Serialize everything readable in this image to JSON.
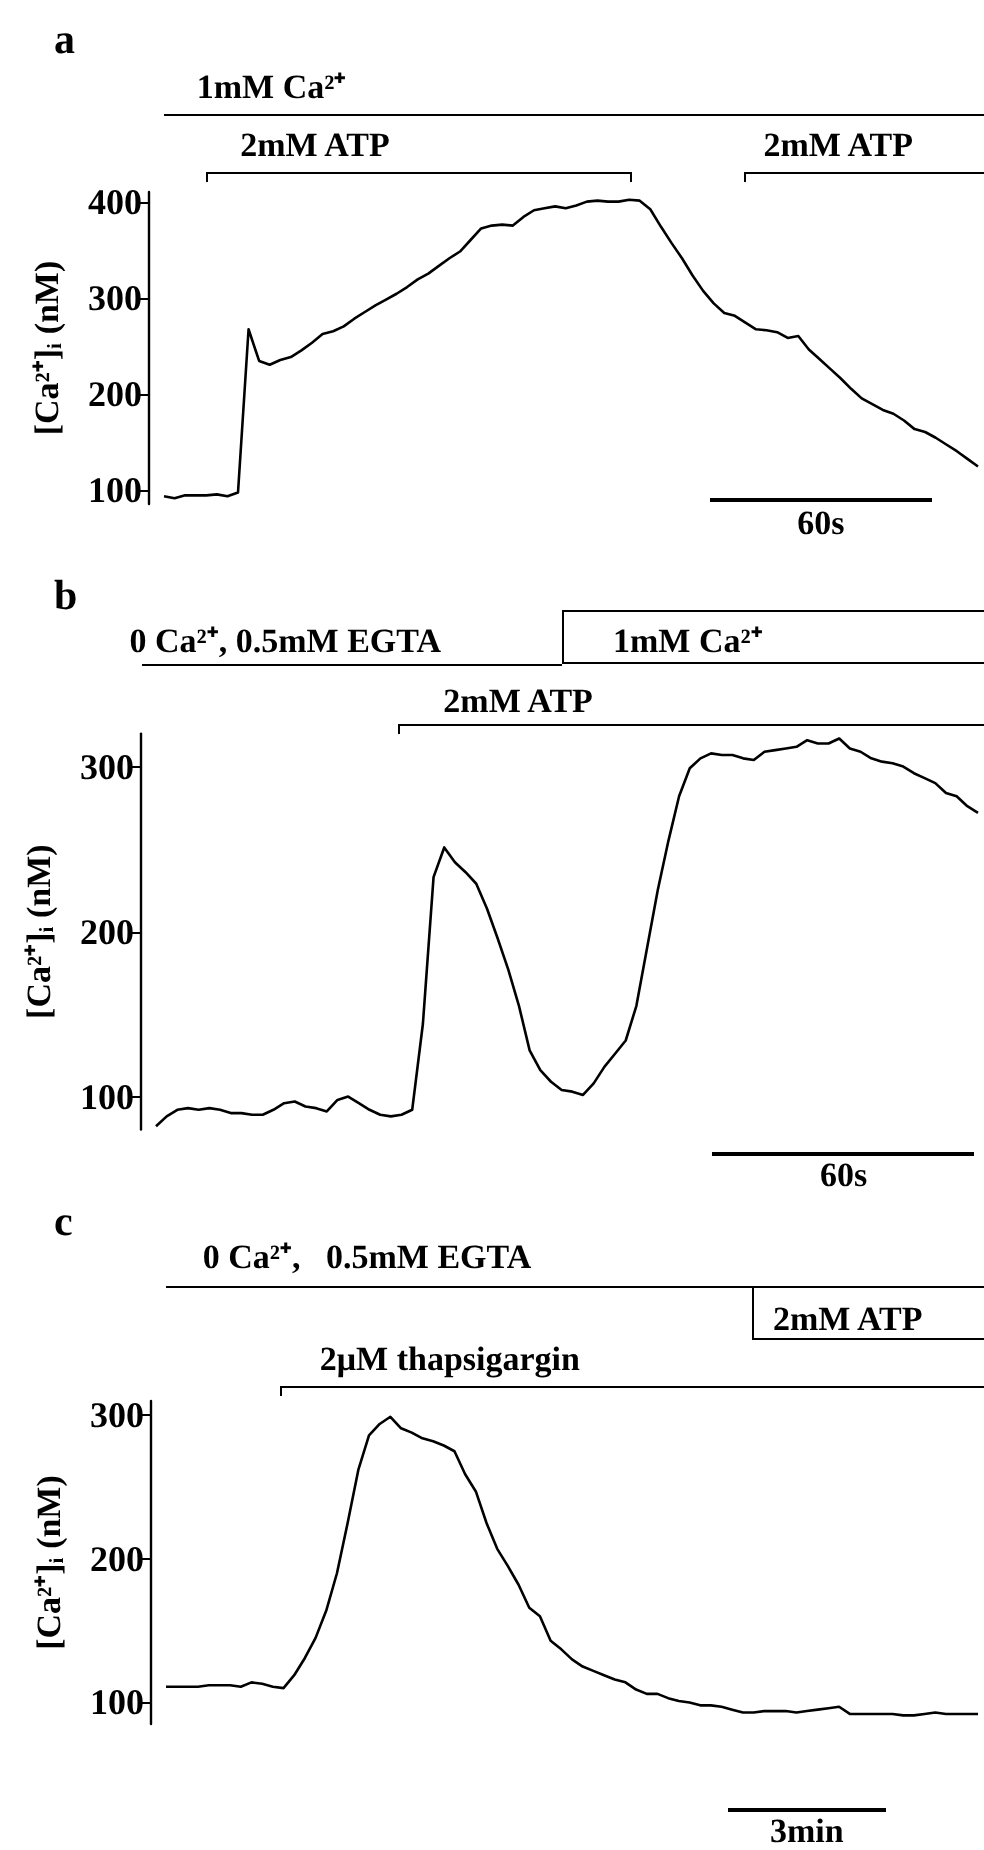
{
  "chart_data": [
    {
      "type": "line",
      "title": "a",
      "ylabel": "[Ca²⁺]ᵢ (nM)",
      "ylim": [
        85,
        410
      ],
      "yticks": [
        100,
        200,
        300,
        400
      ],
      "marker": "none",
      "annotations": [
        "1mM Ca²⁺",
        "2mM ATP",
        "2mM ATP",
        "60s"
      ],
      "categories": [
        null,
        null,
        null,
        null,
        null,
        null,
        null,
        null,
        null,
        null,
        null,
        null,
        null,
        null,
        null,
        null,
        null,
        null,
        null,
        null,
        null,
        null,
        null,
        null,
        null,
        null,
        null,
        null,
        null,
        null,
        null,
        null,
        null,
        null,
        null,
        null,
        null,
        null,
        null,
        null,
        null,
        null,
        null,
        null,
        null,
        null,
        null,
        null,
        null,
        null,
        null,
        null,
        null,
        null,
        null,
        null,
        null,
        null,
        null,
        null,
        null,
        null,
        null,
        null,
        null,
        null,
        null,
        null,
        null,
        null,
        null,
        null,
        null,
        null,
        null,
        null,
        null,
        null
      ],
      "series": [
        {
          "color": "#000000",
          "values": [
            93,
            91,
            94,
            94,
            94,
            95,
            93,
            97,
            267,
            234,
            230,
            235,
            238,
            245,
            253,
            262,
            265,
            270,
            278,
            285,
            292,
            298,
            304,
            311,
            319,
            325,
            333,
            341,
            348,
            360,
            372,
            375,
            376,
            375,
            384,
            391,
            393,
            395,
            393,
            396,
            400,
            401,
            400,
            400,
            402,
            401,
            392,
            374,
            357,
            341,
            323,
            307,
            294,
            284,
            281,
            274,
            267,
            266,
            264,
            258,
            260,
            246,
            236,
            226,
            216,
            205,
            195,
            189,
            183,
            179,
            172,
            163,
            160,
            154,
            147,
            140,
            132,
            124
          ]
        }
      ]
    },
    {
      "type": "line",
      "title": "b",
      "ylabel": "[Ca²⁺]ᵢ (nM)",
      "ylim": [
        80,
        320
      ],
      "yticks": [
        100,
        200,
        300
      ],
      "marker": "none",
      "annotations": [
        "0 Ca²⁺, 0.5mM EGTA",
        "1mM Ca²⁺",
        "2mM ATP",
        "60s"
      ],
      "categories": [
        null,
        null,
        null,
        null,
        null,
        null,
        null,
        null,
        null,
        null,
        null,
        null,
        null,
        null,
        null,
        null,
        null,
        null,
        null,
        null,
        null,
        null,
        null,
        null,
        null,
        null,
        null,
        null,
        null,
        null,
        null,
        null,
        null,
        null,
        null,
        null,
        null,
        null,
        null,
        null,
        null,
        null,
        null,
        null,
        null,
        null,
        null,
        null,
        null,
        null,
        null,
        null,
        null,
        null,
        null,
        null,
        null,
        null,
        null,
        null,
        null,
        null,
        null,
        null,
        null,
        null,
        null,
        null,
        null,
        null,
        null,
        null,
        null,
        null,
        null,
        null,
        null,
        null
      ],
      "series": [
        {
          "color": "#000000",
          "values": [
            82,
            88,
            92,
            93,
            92,
            93,
            92,
            90,
            90,
            89,
            89,
            92,
            96,
            97,
            94,
            93,
            91,
            98,
            100,
            96,
            92,
            89,
            88,
            89,
            92,
            144,
            233,
            251,
            242,
            236,
            229,
            214,
            196,
            177,
            155,
            128,
            116,
            109,
            104,
            103,
            101,
            108,
            118,
            126,
            134,
            155,
            190,
            225,
            255,
            282,
            299,
            305,
            308,
            307,
            307,
            305,
            304,
            309,
            310,
            311,
            312,
            316,
            314,
            314,
            317,
            311,
            309,
            305,
            303,
            302,
            300,
            296,
            293,
            290,
            284,
            282,
            276,
            272
          ]
        }
      ]
    },
    {
      "type": "line",
      "title": "c",
      "ylabel": "[Ca²⁺]ᵢ (nM)",
      "ylim": [
        85,
        310
      ],
      "yticks": [
        100,
        200,
        300
      ],
      "marker": "none",
      "annotations": [
        "0 Ca²⁺,   0.5mM EGTA",
        "2mM ATP",
        "2μM thapsigargin",
        "3min"
      ],
      "categories": [
        null,
        null,
        null,
        null,
        null,
        null,
        null,
        null,
        null,
        null,
        null,
        null,
        null,
        null,
        null,
        null,
        null,
        null,
        null,
        null,
        null,
        null,
        null,
        null,
        null,
        null,
        null,
        null,
        null,
        null,
        null,
        null,
        null,
        null,
        null,
        null,
        null,
        null,
        null,
        null,
        null,
        null,
        null,
        null,
        null,
        null,
        null,
        null,
        null,
        null,
        null,
        null,
        null,
        null,
        null,
        null,
        null,
        null,
        null,
        null,
        null,
        null,
        null,
        null,
        null,
        null,
        null,
        null,
        null,
        null,
        null,
        null,
        null,
        null,
        null,
        null,
        null
      ],
      "series": [
        {
          "color": "#000000",
          "values": [
            111,
            111,
            111,
            111,
            112,
            112,
            112,
            111,
            114,
            113,
            111,
            110,
            119,
            131,
            145,
            164,
            190,
            225,
            262,
            286,
            294,
            299,
            291,
            288,
            284,
            282,
            279,
            275,
            259,
            247,
            225,
            207,
            195,
            182,
            166,
            160,
            143,
            137,
            130,
            125,
            122,
            119,
            116,
            114,
            109,
            106,
            106,
            103,
            101,
            100,
            98,
            98,
            97,
            95,
            93,
            93,
            94,
            94,
            94,
            93,
            94,
            95,
            96,
            97,
            92,
            92,
            92,
            92,
            92,
            91,
            91,
            92,
            93,
            92,
            92,
            92,
            92
          ]
        }
      ]
    }
  ]
}
